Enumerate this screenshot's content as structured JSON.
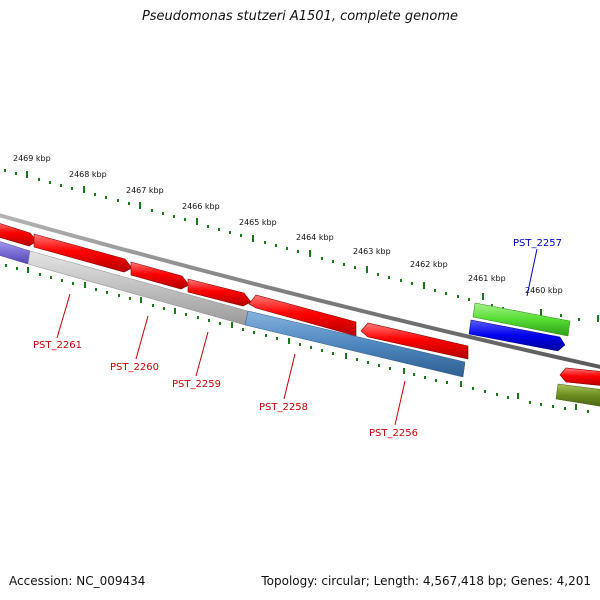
{
  "title": "Pseudomonas stutzeri A1501, complete genome",
  "footer": {
    "accession": "Accession: NC_009434",
    "summary": "Topology: circular; Length: 4,567,418 bp; Genes: 4,201"
  },
  "colors": {
    "tick": "#1a7a1a",
    "backbone": "#7f7f7f",
    "forward_gene": "#ff0000",
    "grey_gene": "#c0c0c0",
    "steel_gene": "#4f87bf",
    "purple_gene": "#7b6fd6",
    "green_gene": "#55dd33",
    "blue_gene": "#0000ee",
    "olive_gene": "#6b8c1f",
    "label_red": "#cc0000",
    "label_blue": "#0000cc"
  },
  "ruler": {
    "labels": [
      "2469 kbp",
      "2468 kbp",
      "2467 kbp",
      "2466 kbp",
      "2465 kbp",
      "2464 kbp",
      "2463 kbp",
      "2462 kbp",
      "2461 kbp",
      "2460 kbp"
    ]
  },
  "gene_labels": [
    {
      "name": "PST_2261",
      "strand": "reverse"
    },
    {
      "name": "PST_2260",
      "strand": "reverse"
    },
    {
      "name": "PST_2259",
      "strand": "reverse"
    },
    {
      "name": "PST_2258",
      "strand": "reverse"
    },
    {
      "name": "PST_2256",
      "strand": "reverse"
    },
    {
      "name": "PST_2257",
      "strand": "forward"
    }
  ]
}
